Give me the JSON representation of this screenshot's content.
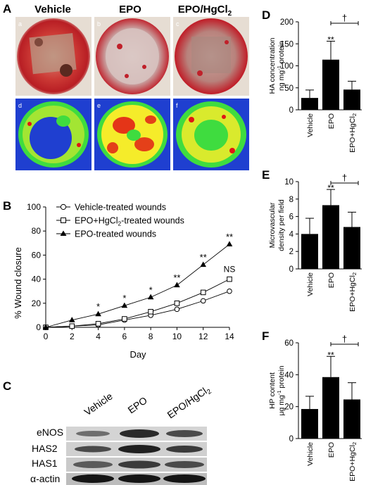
{
  "panels": {
    "A": {
      "letter": "A",
      "column_titles": [
        "Vehicle",
        "EPO",
        "EPO/HgCl"
      ],
      "column_title_subscript": "2",
      "photo_letters": [
        "a",
        "b",
        "c"
      ],
      "map_letters": [
        "d",
        "e",
        "f"
      ]
    },
    "C": {
      "letter": "C",
      "lanes": [
        "Vehicle",
        "EPO",
        "EPO/HgCl"
      ],
      "lane_subscript": "2",
      "bands": [
        "eNOS",
        "HAS2",
        "HAS1",
        "α-actin"
      ]
    }
  },
  "colors": {
    "bar": "#000000",
    "wound_red": "#c0202a",
    "heat_blue": "#1f3fd0",
    "heat_green": "#3fdc3f",
    "heat_yellow": "#f5ec2a",
    "heat_red": "#e01515"
  },
  "chart_data": [
    {
      "panel": "B",
      "letter": "B",
      "type": "line",
      "xlabel": "Day",
      "ylabel": "% Wound closure",
      "xlim": [
        0,
        14
      ],
      "ylim": [
        0,
        100
      ],
      "xticks": [
        "0",
        "2",
        "4",
        "6",
        "8",
        "10",
        "12",
        "14"
      ],
      "yticks": [
        "0",
        "20",
        "40",
        "60",
        "80",
        "100"
      ],
      "x": [
        0,
        2,
        4,
        6,
        8,
        10,
        12,
        14
      ],
      "legend_placement": "top-left",
      "series": [
        {
          "name": "Vehicle-treated wounds",
          "marker": "open-circle",
          "values": [
            0,
            1,
            2,
            6,
            10,
            15,
            22,
            30
          ]
        },
        {
          "name": "EPO+HgCl",
          "name_subscript": "2",
          "name_suffix": "-treated wounds",
          "marker": "open-square",
          "values": [
            0,
            1,
            3,
            7,
            13,
            20,
            29,
            40
          ]
        },
        {
          "name": "EPO-treated wounds",
          "marker": "filled-triangle",
          "values": [
            0,
            6,
            11,
            18,
            25,
            35,
            52,
            69
          ]
        }
      ],
      "annotations": [
        {
          "x": 4,
          "text": "*"
        },
        {
          "x": 6,
          "text": "*"
        },
        {
          "x": 8,
          "text": "*"
        },
        {
          "x": 10,
          "text": "**"
        },
        {
          "x": 12,
          "text": "**"
        },
        {
          "x": 14,
          "text": "**"
        },
        {
          "x": 14,
          "text": "NS"
        }
      ]
    },
    {
      "panel": "D",
      "letter": "D",
      "type": "bar",
      "categories": [
        "Vehicle",
        "EPO",
        "EPO+HgCl"
      ],
      "category_subscript": "2",
      "values": [
        27,
        114,
        46
      ],
      "errors": [
        18,
        42,
        19
      ],
      "ylabel_line1": "HA concentration",
      "ylabel_line2": "ng mg",
      "ylabel_sup": "-1",
      "ylabel_suffix": " protein",
      "ylim": [
        0,
        200
      ],
      "yticks": [
        "0",
        "50",
        "100",
        "150",
        "200"
      ],
      "significance": "**",
      "bracket": "†"
    },
    {
      "panel": "E",
      "letter": "E",
      "type": "bar",
      "categories": [
        "Vehicle",
        "EPO",
        "EPO+HgCl"
      ],
      "category_subscript": "2",
      "values": [
        4.0,
        7.3,
        4.8
      ],
      "errors": [
        1.8,
        1.8,
        1.7
      ],
      "ylabel_line1": "Microvascular",
      "ylabel_line2": "density per field",
      "ylim": [
        0,
        10
      ],
      "yticks": [
        "0",
        "2",
        "4",
        "6",
        "8",
        "10"
      ],
      "significance": "**",
      "bracket": "†"
    },
    {
      "panel": "F",
      "letter": "F",
      "type": "bar",
      "categories": [
        "Vehicle",
        "EPO",
        "EPO+HgCl"
      ],
      "category_subscript": "2",
      "values": [
        18.5,
        38.5,
        24.5
      ],
      "errors": [
        8,
        13,
        10.5
      ],
      "ylabel_line1": "HP content",
      "ylabel_line2": "μg mg",
      "ylabel_sup": "-1",
      "ylabel_suffix": " protein",
      "ylim": [
        0,
        60
      ],
      "yticks": [
        "0",
        "20",
        "40",
        "60"
      ],
      "significance": "**",
      "bracket": "†"
    }
  ]
}
